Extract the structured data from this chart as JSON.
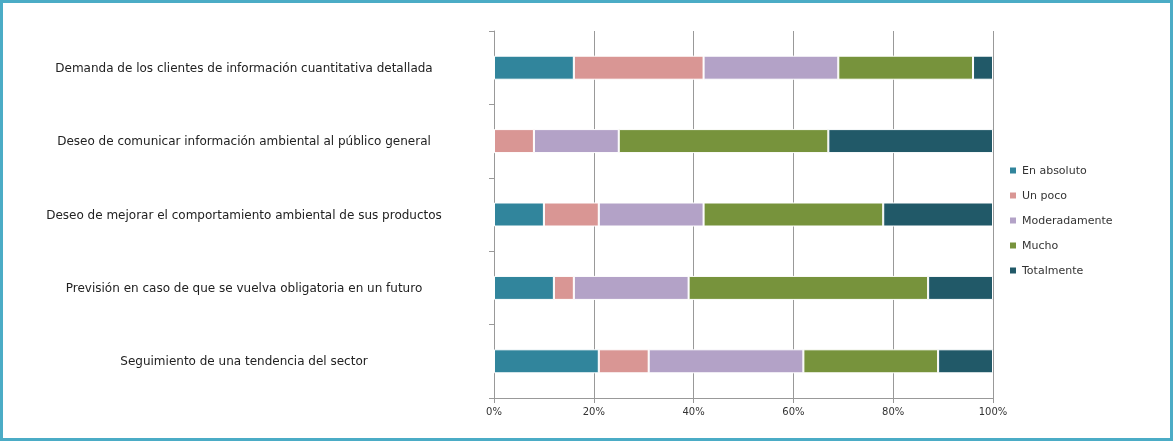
{
  "chart_data": {
    "type": "bar",
    "orientation": "horizontal",
    "stacked": true,
    "categories": [
      "Demanda de los clientes de información cuantitativa detallada",
      "Deseo de comunicar información ambiental al público general",
      "Deseo de mejorar el comportamiento ambiental de sus productos",
      "Previsión en caso de que se vuelva obligatoria en un futuro",
      "Seguimiento de una tendencia del sector"
    ],
    "series": [
      {
        "name": "En absoluto",
        "color": "#31859c",
        "values": [
          16,
          0,
          10,
          12,
          21
        ]
      },
      {
        "name": "Un poco",
        "color": "#d99694",
        "values": [
          26,
          8,
          11,
          4,
          10
        ]
      },
      {
        "name": "Moderadamente",
        "color": "#b3a2c7",
        "values": [
          27,
          17,
          21,
          23,
          31
        ]
      },
      {
        "name": "Mucho",
        "color": "#77933c",
        "values": [
          27,
          42,
          36,
          48,
          27
        ]
      },
      {
        "name": "Totalmente",
        "color": "#215968",
        "values": [
          4,
          33,
          22,
          13,
          11
        ]
      }
    ],
    "xlim": [
      0,
      100
    ],
    "xticks": [
      {
        "value": 0,
        "label": "0%"
      },
      {
        "value": 20,
        "label": "20%"
      },
      {
        "value": 40,
        "label": "40%"
      },
      {
        "value": 60,
        "label": "60%"
      },
      {
        "value": 80,
        "label": "80%"
      },
      {
        "value": 100,
        "label": "100%"
      }
    ],
    "grid": "x",
    "legend": "right"
  }
}
